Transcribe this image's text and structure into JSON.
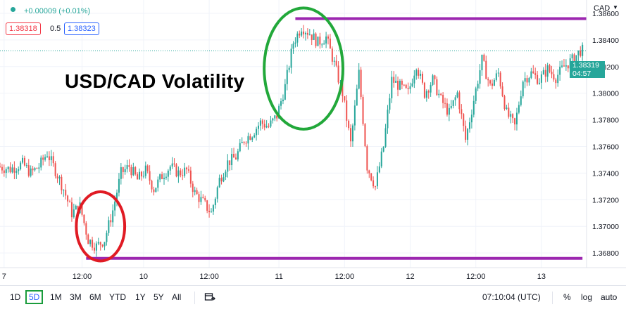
{
  "header": {
    "change": "+0.00009 (+0.01%)",
    "bid": "1.38318",
    "spread": "0.5",
    "ask": "1.38323",
    "currency": "CAD",
    "colors": {
      "dot": "#26a69a",
      "change": "#26a69a",
      "bid": "#f23645",
      "ask": "#2962ff"
    }
  },
  "annotation_title": "USD/CAD Volatility",
  "price_label": {
    "value": "1.38319",
    "countdown": "04:57",
    "color": "#26a69a"
  },
  "toolbar": {
    "timeframes": [
      "1D",
      "5D",
      "1M",
      "3M",
      "6M",
      "YTD",
      "1Y",
      "5Y",
      "All"
    ],
    "active": "5D",
    "time": "07:10:04 (UTC)",
    "percent": "%",
    "log": "log",
    "auto": "auto"
  },
  "chart_data": {
    "type": "candlestick",
    "symbol_quote": "CAD",
    "y_ticks": [
      1.368,
      1.37,
      1.372,
      1.374,
      1.376,
      1.378,
      1.38,
      1.382,
      1.384,
      1.386
    ],
    "ylim": [
      1.3669,
      1.387
    ],
    "x_ticks": [
      {
        "label": "7",
        "t": 0.5
      },
      {
        "label": "12:00",
        "t": 10
      },
      {
        "label": "10",
        "t": 17.5
      },
      {
        "label": "12:00",
        "t": 25.5
      },
      {
        "label": "11",
        "t": 34
      },
      {
        "label": "12:00",
        "t": 42
      },
      {
        "label": "12",
        "t": 50
      },
      {
        "label": "12:00",
        "t": 58
      },
      {
        "label": "13",
        "t": 66
      }
    ],
    "xlim": [
      0,
      71.5
    ],
    "path": [
      [
        0,
        1.3745
      ],
      [
        1.5,
        1.3743
      ],
      [
        3,
        1.3747
      ],
      [
        4,
        1.374
      ],
      [
        5,
        1.3745
      ],
      [
        6,
        1.3755
      ],
      [
        7,
        1.3742
      ],
      [
        8,
        1.3728
      ],
      [
        9,
        1.371
      ],
      [
        10,
        1.3715
      ],
      [
        11,
        1.369
      ],
      [
        12,
        1.3685
      ],
      [
        13,
        1.369
      ],
      [
        14,
        1.3712
      ],
      [
        15,
        1.374
      ],
      [
        16,
        1.3745
      ],
      [
        17,
        1.3735
      ],
      [
        18,
        1.3742
      ],
      [
        19,
        1.3728
      ],
      [
        20,
        1.3738
      ],
      [
        21,
        1.3745
      ],
      [
        22,
        1.374
      ],
      [
        23,
        1.3742
      ],
      [
        24,
        1.3725
      ],
      [
        25,
        1.3718
      ],
      [
        26,
        1.371
      ],
      [
        27,
        1.3735
      ],
      [
        28,
        1.3748
      ],
      [
        29,
        1.3752
      ],
      [
        30,
        1.3765
      ],
      [
        31,
        1.377
      ],
      [
        32,
        1.3778
      ],
      [
        33,
        1.3775
      ],
      [
        34,
        1.3783
      ],
      [
        35,
        1.3805
      ],
      [
        36,
        1.3838
      ],
      [
        37,
        1.385
      ],
      [
        38,
        1.3845
      ],
      [
        39,
        1.3838
      ],
      [
        40,
        1.3842
      ],
      [
        41,
        1.3822
      ],
      [
        42,
        1.38
      ],
      [
        43,
        1.3762
      ],
      [
        44,
        1.3815
      ],
      [
        45,
        1.3745
      ],
      [
        46,
        1.373
      ],
      [
        47,
        1.376
      ],
      [
        48,
        1.381
      ],
      [
        49,
        1.3805
      ],
      [
        50,
        1.38
      ],
      [
        51,
        1.3822
      ],
      [
        52,
        1.38
      ],
      [
        53,
        1.381
      ],
      [
        54,
        1.3795
      ],
      [
        55,
        1.3785
      ],
      [
        56,
        1.38
      ],
      [
        57,
        1.3765
      ],
      [
        58,
        1.3795
      ],
      [
        59,
        1.3825
      ],
      [
        60,
        1.3805
      ],
      [
        61,
        1.3815
      ],
      [
        62,
        1.3785
      ],
      [
        63,
        1.3775
      ],
      [
        64,
        1.381
      ],
      [
        65,
        1.3815
      ],
      [
        66,
        1.381
      ],
      [
        67,
        1.3818
      ],
      [
        68,
        1.3812
      ],
      [
        69,
        1.382
      ],
      [
        70,
        1.3825
      ],
      [
        71,
        1.3832
      ]
    ],
    "colors": {
      "up": "#26a69a",
      "down": "#ef5350"
    },
    "current_price": 1.38319,
    "annotations": [
      {
        "type": "hline",
        "y": 1.3856,
        "x_from": 36,
        "x_to": 71.5,
        "color": "#9c27b0"
      },
      {
        "type": "hline",
        "y": 1.3676,
        "x_from": 10.5,
        "x_to": 71,
        "color": "#9c27b0"
      },
      {
        "type": "ellipse",
        "x_range": [
          9.3,
          15.2
        ],
        "y_range": [
          1.3674,
          1.3726
        ],
        "color": "#e01b24"
      },
      {
        "type": "ellipse",
        "x_range": [
          32.2,
          41.8
        ],
        "y_range": [
          1.3773,
          1.3864
        ],
        "color": "#22a83a"
      }
    ]
  }
}
